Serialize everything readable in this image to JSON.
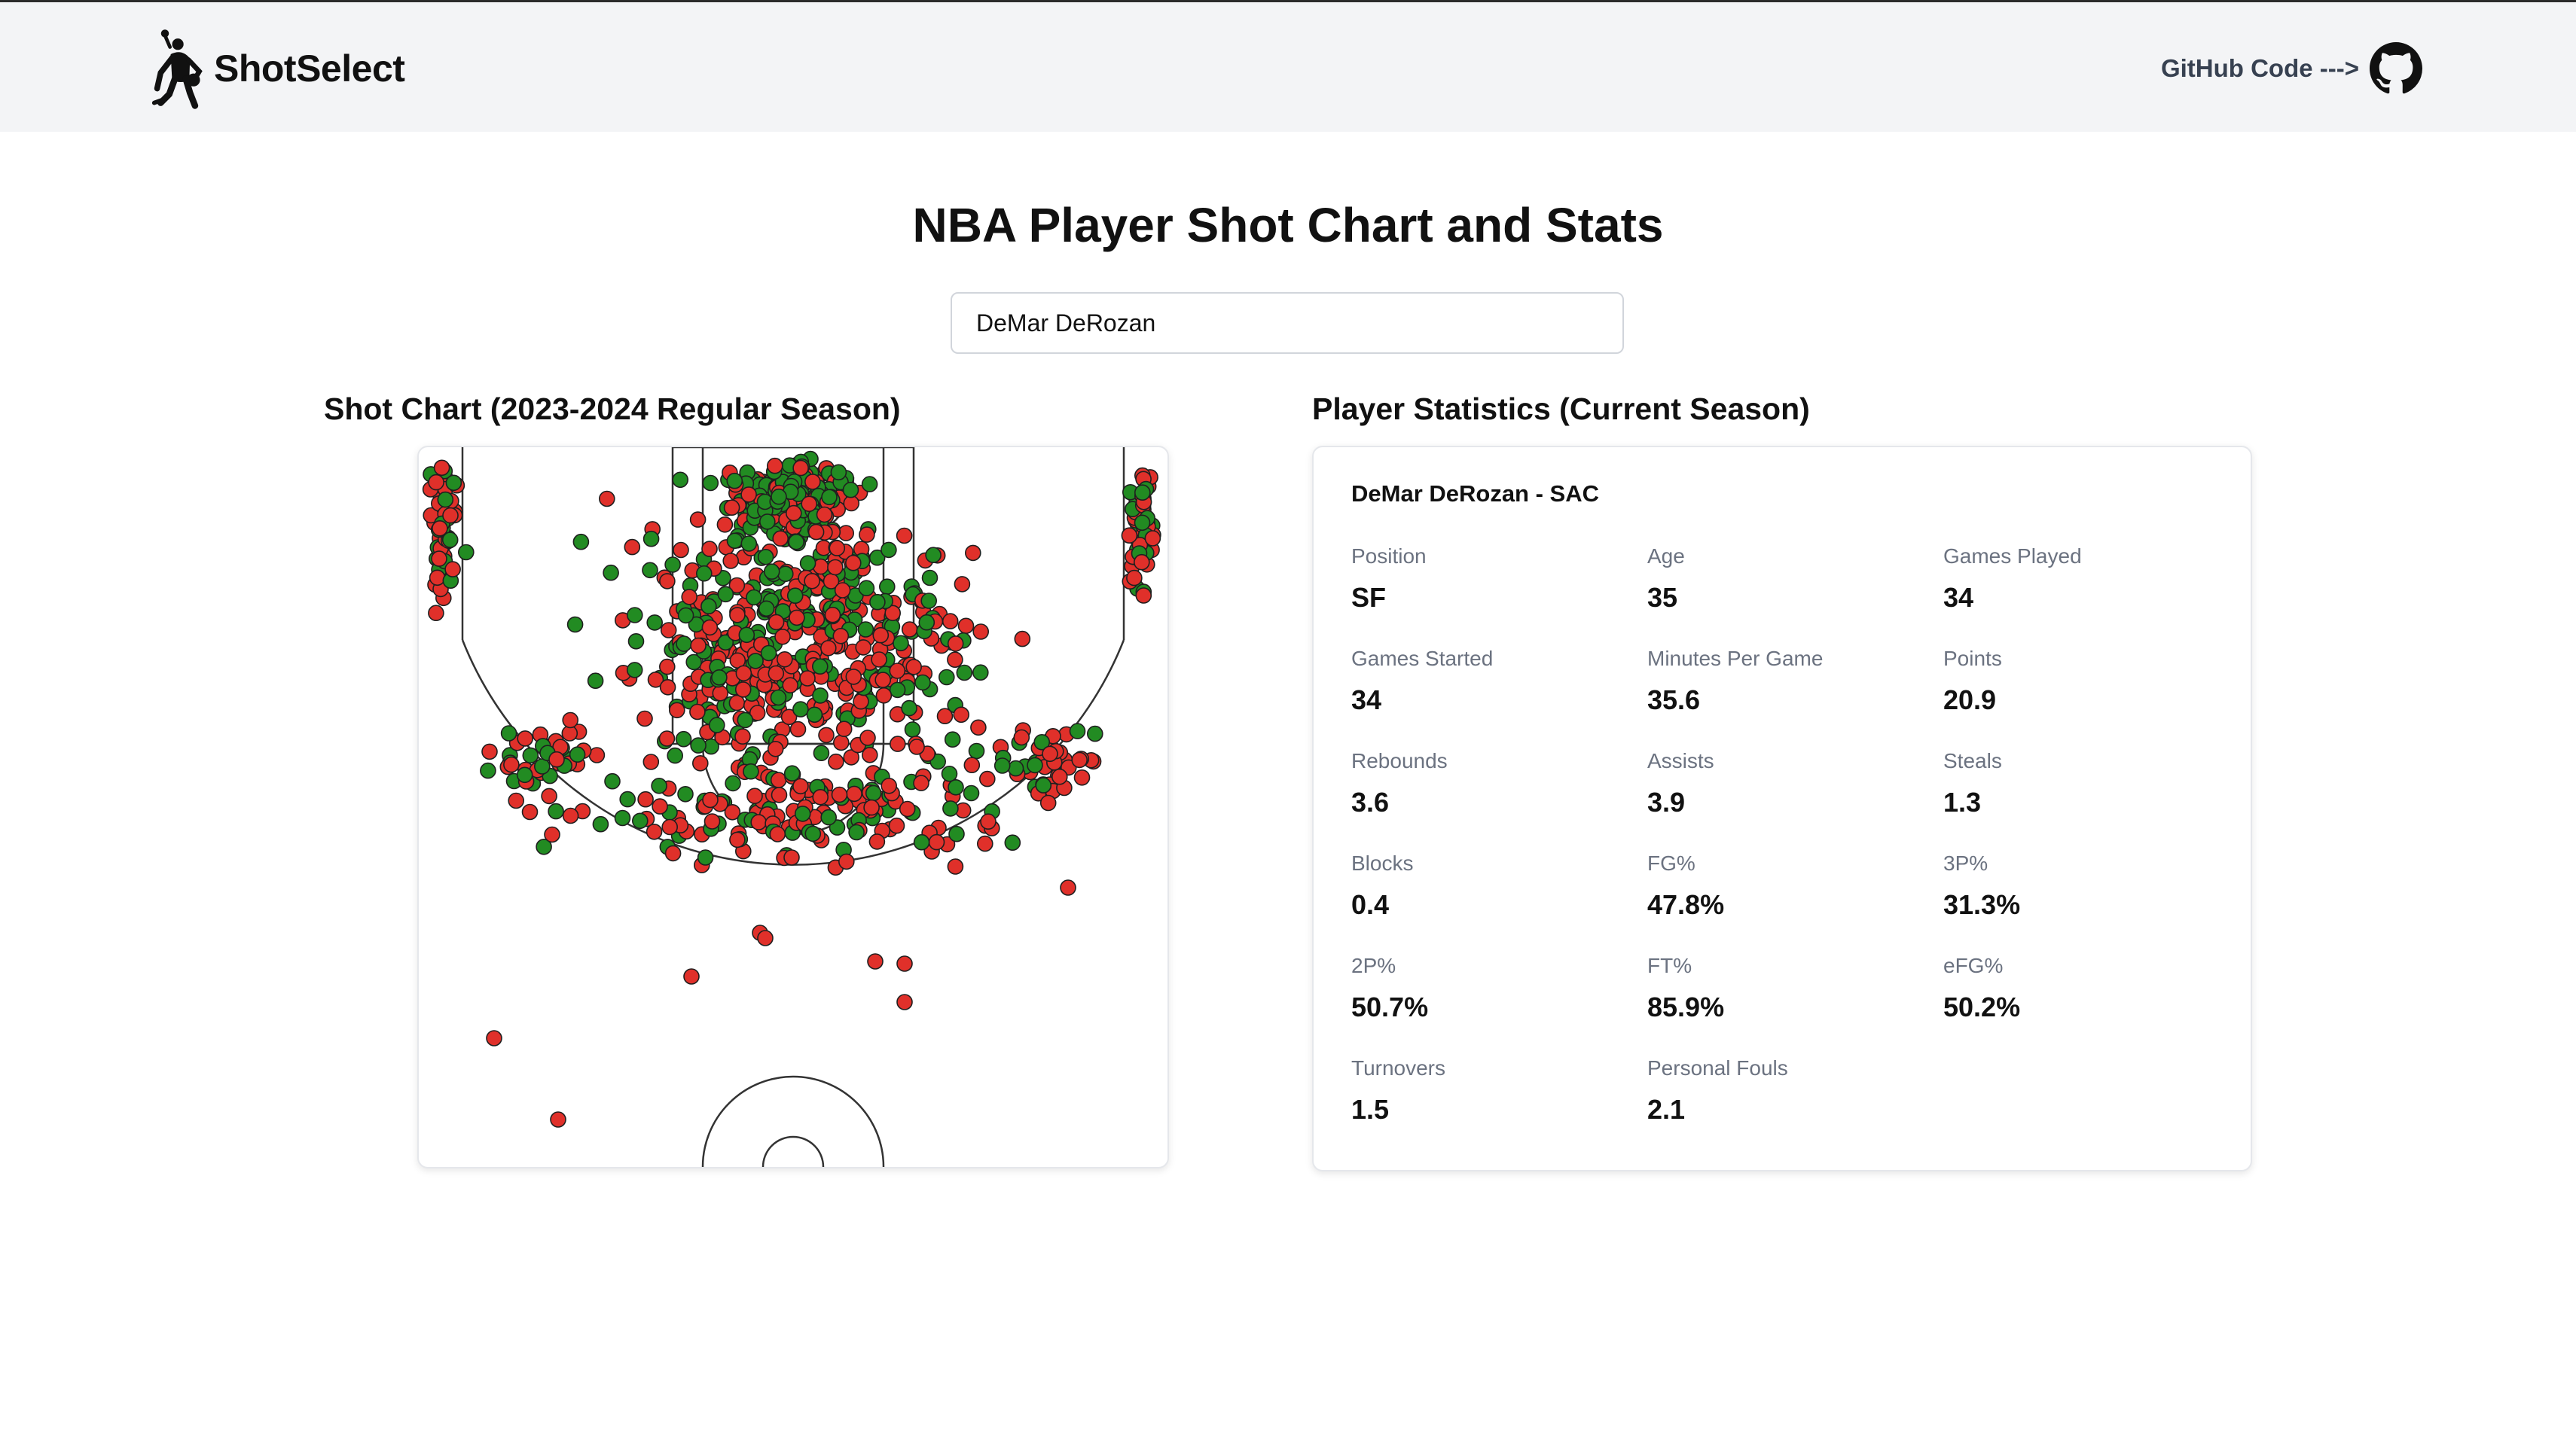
{
  "brand": {
    "name": "ShotSelect",
    "logo_icon": "basketball-player-silhouette-icon"
  },
  "header": {
    "github_label": "GitHub Code --->",
    "github_icon": "github-icon"
  },
  "page_title": "NBA Player Shot Chart and Stats",
  "search": {
    "value": "DeMar DeRozan"
  },
  "shot_chart": {
    "title": "Shot Chart (2023-2024 Regular Season)",
    "colors": {
      "made": "#228b22",
      "missed": "#e0302a"
    }
  },
  "stats": {
    "title": "Player Statistics (Current Season)",
    "player_heading": "DeMar DeRozan - SAC",
    "items": [
      {
        "label": "Position",
        "value": "SF"
      },
      {
        "label": "Age",
        "value": "35"
      },
      {
        "label": "Games Played",
        "value": "34"
      },
      {
        "label": "Games Started",
        "value": "34"
      },
      {
        "label": "Minutes Per Game",
        "value": "35.6"
      },
      {
        "label": "Points",
        "value": "20.9"
      },
      {
        "label": "Rebounds",
        "value": "3.6"
      },
      {
        "label": "Assists",
        "value": "3.9"
      },
      {
        "label": "Steals",
        "value": "1.3"
      },
      {
        "label": "Blocks",
        "value": "0.4"
      },
      {
        "label": "FG%",
        "value": "47.8%"
      },
      {
        "label": "3P%",
        "value": "31.3%"
      },
      {
        "label": "2P%",
        "value": "50.7%"
      },
      {
        "label": "FT%",
        "value": "85.9%"
      },
      {
        "label": "eFG%",
        "value": "50.2%"
      },
      {
        "label": "Turnovers",
        "value": "1.5"
      },
      {
        "label": "Personal Fouls",
        "value": "2.1"
      }
    ]
  }
}
